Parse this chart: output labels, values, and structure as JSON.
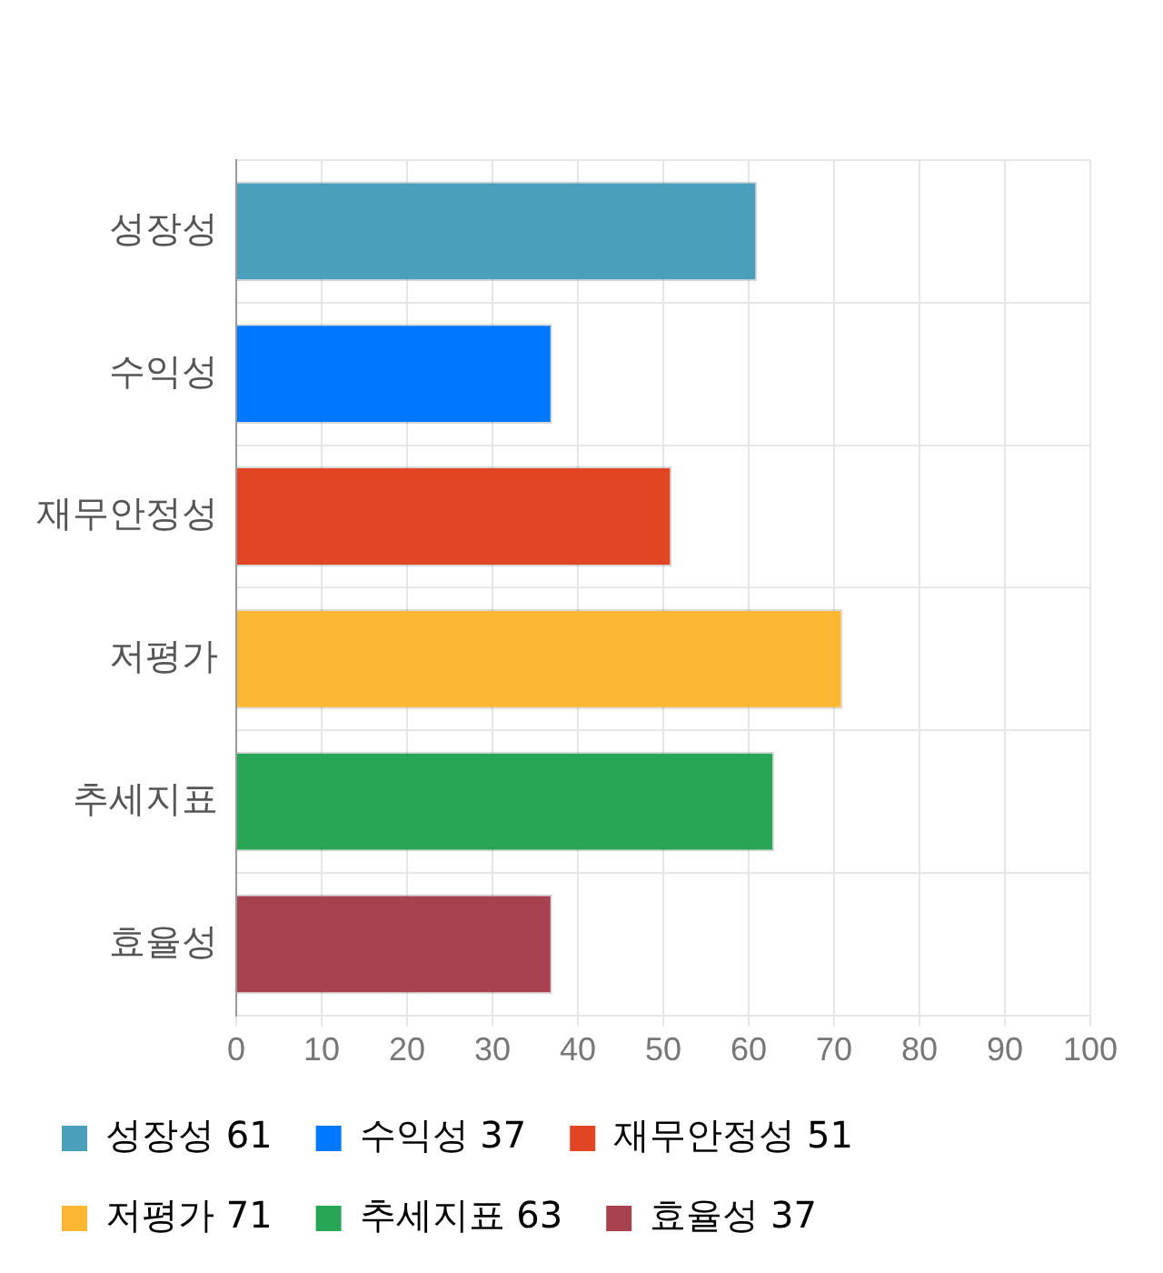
{
  "chart_data": {
    "type": "bar",
    "orientation": "horizontal",
    "categories": [
      "성장성",
      "수익성",
      "재무안정성",
      "저평가",
      "추세지표",
      "효율성"
    ],
    "series": [
      {
        "name": "성장성 61",
        "color": "#4aa0bb",
        "values": [
          61,
          null,
          null,
          null,
          null,
          null
        ]
      },
      {
        "name": "수익성 37",
        "color": "#0077ff",
        "values": [
          null,
          37,
          null,
          null,
          null,
          null
        ]
      },
      {
        "name": "재무안정성 51",
        "color": "#e24524",
        "values": [
          null,
          null,
          51,
          null,
          null,
          null
        ]
      },
      {
        "name": "저평가 71",
        "color": "#feb733",
        "values": [
          null,
          null,
          null,
          71,
          null,
          null
        ]
      },
      {
        "name": "추세지표 63",
        "color": "#28a655",
        "values": [
          null,
          null,
          null,
          null,
          63,
          null
        ]
      },
      {
        "name": "효율성 37",
        "color": "#a74250",
        "values": [
          null,
          null,
          null,
          null,
          null,
          37
        ]
      }
    ],
    "xlim": [
      0,
      100
    ],
    "xticks": [
      0,
      10,
      20,
      30,
      40,
      50,
      60,
      70,
      80,
      90,
      100
    ],
    "grid": true,
    "legend": "bottom"
  }
}
